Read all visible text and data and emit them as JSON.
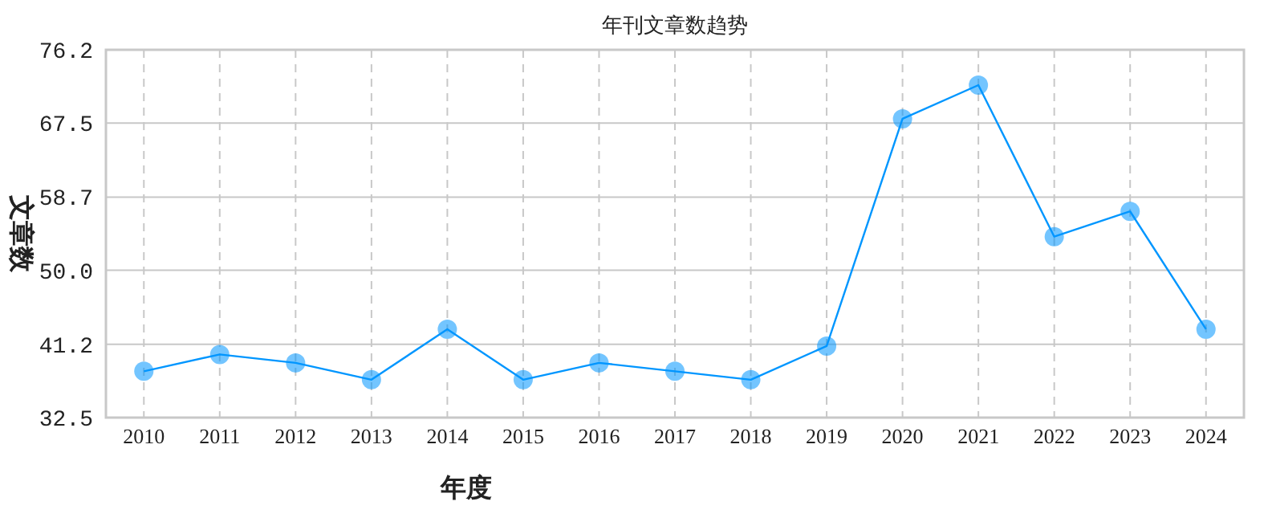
{
  "chart_data": {
    "type": "line",
    "title": "年刊文章数趋势",
    "xlabel": "年度",
    "ylabel": "文章数",
    "categories": [
      "2010",
      "2011",
      "2012",
      "2013",
      "2014",
      "2015",
      "2016",
      "2017",
      "2018",
      "2019",
      "2020",
      "2021",
      "2022",
      "2023",
      "2024"
    ],
    "series": [
      {
        "color": "#0096ff",
        "values": [
          38,
          40,
          39,
          37,
          43,
          37,
          39,
          38,
          37,
          41,
          68,
          72,
          54,
          57,
          43
        ]
      }
    ],
    "ylim": [
      32.5,
      76.2
    ],
    "yticks": [
      32.5,
      41.2,
      {
        "value": 50,
        "label": "50.0"
      },
      58.7,
      67.5,
      76.2
    ],
    "grid": true,
    "marker": "circle",
    "line_style": "solid"
  }
}
